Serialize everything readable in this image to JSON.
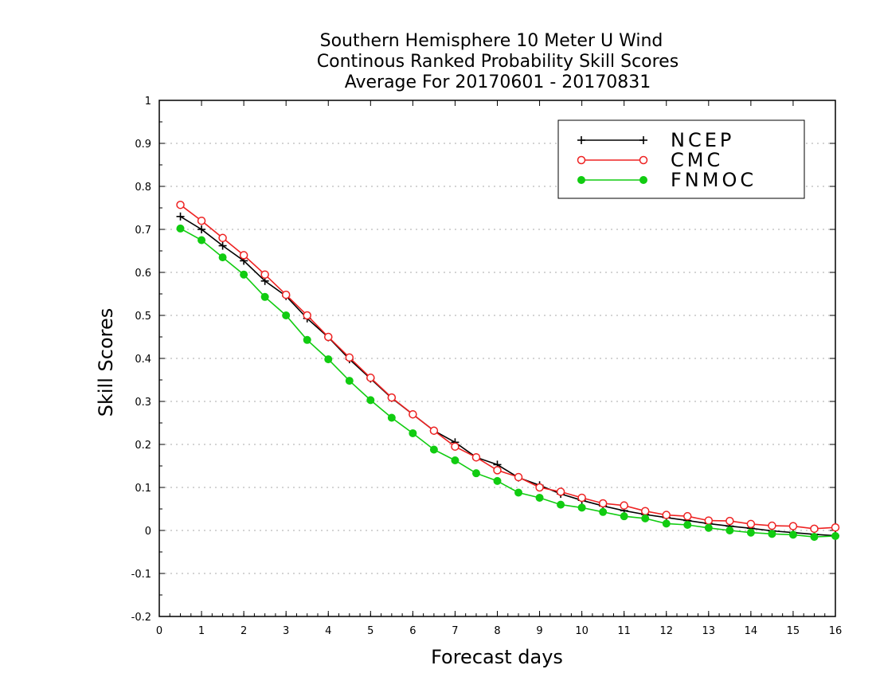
{
  "chart_data": {
    "type": "line",
    "title_lines": [
      "Southern Hemisphere 10 Meter U Wind",
      "Continous Ranked Probability Skill Scores",
      "Average For 20170601 - 20170831"
    ],
    "xlabel": "Forecast days",
    "ylabel": "Skill Scores",
    "xlim": [
      0,
      16
    ],
    "ylim": [
      -0.2,
      1
    ],
    "x_ticks": [
      "0",
      "1",
      "2",
      "3",
      "4",
      "5",
      "6",
      "7",
      "8",
      "9",
      "10",
      "11",
      "12",
      "13",
      "14",
      "15",
      "16"
    ],
    "y_ticks": [
      "-0.2",
      "-0.1",
      "0",
      "0.1",
      "0.2",
      "0.3",
      "0.4",
      "0.5",
      "0.6",
      "0.7",
      "0.8",
      "0.9",
      "1"
    ],
    "grid": "horizontal-dotted",
    "legend_position": "top-right",
    "x": [
      0.5,
      1,
      1.5,
      2,
      2.5,
      3,
      3.5,
      4,
      4.5,
      5,
      5.5,
      6,
      6.5,
      7,
      7.5,
      8,
      8.5,
      9,
      9.5,
      10,
      10.5,
      11,
      11.5,
      12,
      12.5,
      13,
      13.5,
      14,
      14.5,
      15,
      15.5,
      16
    ],
    "series": [
      {
        "name": "NCEP",
        "color": "#000000",
        "marker": "plus",
        "values": [
          0.73,
          0.7,
          0.662,
          0.627,
          0.58,
          0.545,
          0.493,
          0.449,
          0.398,
          0.353,
          0.308,
          0.27,
          0.232,
          0.205,
          0.17,
          0.153,
          0.123,
          0.105,
          0.085,
          0.07,
          0.057,
          0.046,
          0.037,
          0.03,
          0.023,
          0.016,
          0.01,
          0.005,
          -0.001,
          -0.005,
          -0.009,
          -0.012
        ]
      },
      {
        "name": "CMC",
        "color": "#ee2222",
        "marker": "open-circle",
        "values": [
          0.757,
          0.72,
          0.68,
          0.64,
          0.595,
          0.548,
          0.5,
          0.45,
          0.402,
          0.355,
          0.309,
          0.27,
          0.232,
          0.195,
          0.17,
          0.14,
          0.124,
          0.1,
          0.09,
          0.076,
          0.063,
          0.058,
          0.045,
          0.036,
          0.033,
          0.023,
          0.022,
          0.015,
          0.011,
          0.01,
          0.004,
          0.007
        ]
      },
      {
        "name": "FNMOC",
        "color": "#11cc11",
        "marker": "filled-circle",
        "values": [
          0.702,
          0.675,
          0.635,
          0.595,
          0.543,
          0.5,
          0.443,
          0.398,
          0.348,
          0.303,
          0.262,
          0.226,
          0.188,
          0.163,
          0.133,
          0.115,
          0.088,
          0.076,
          0.06,
          0.053,
          0.043,
          0.033,
          0.028,
          0.016,
          0.013,
          0.006,
          0.0,
          -0.005,
          -0.008,
          -0.01,
          -0.015,
          -0.013
        ]
      }
    ]
  }
}
